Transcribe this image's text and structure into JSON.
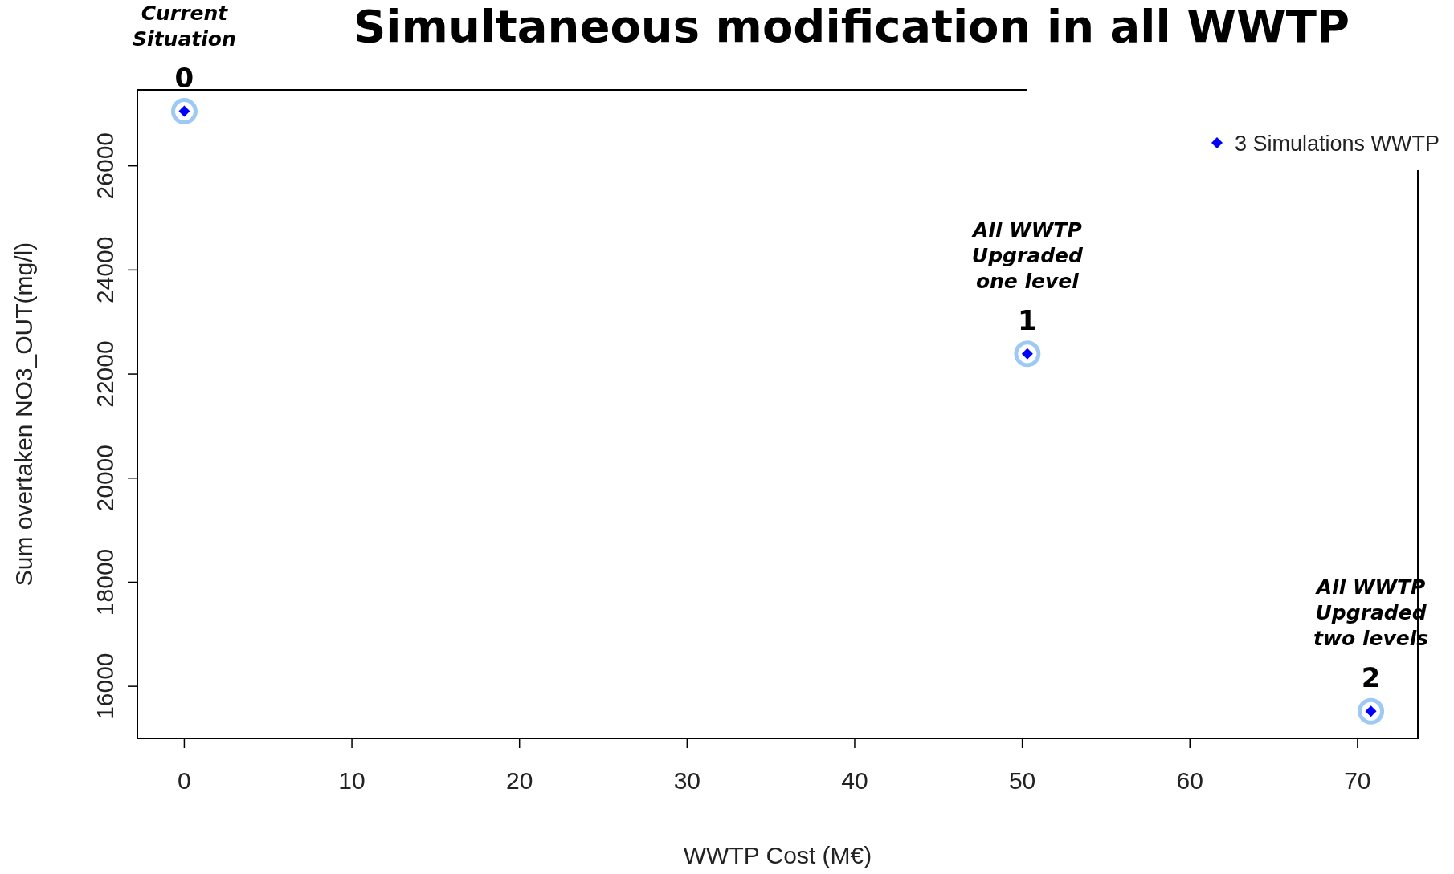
{
  "chart_data": {
    "type": "scatter",
    "title": "Simultaneous modification in all WWTP",
    "xlabel": "WWTP Cost (M€)",
    "ylabel": "Sum overtaken NO3_OUT(mg/l)",
    "x": [
      0,
      50.3,
      70.8
    ],
    "series": [
      {
        "type": "scatter",
        "marker": "circle",
        "color": "#9ec9f5",
        "values": [
          27050,
          22390,
          15520
        ]
      },
      {
        "name": "3 Simulations WWTP",
        "type": "scatter",
        "marker": "diamond",
        "color": "#0000ff",
        "values": [
          27050,
          22390,
          15520
        ]
      }
    ],
    "xlim": [
      -2.8,
      73.6
    ],
    "xticks": [
      0,
      10,
      20,
      30,
      40,
      50,
      60,
      70
    ],
    "ylim": [
      15000,
      27460
    ],
    "yticks": [
      16000,
      18000,
      20000,
      22000,
      24000,
      26000
    ],
    "legend": "top right",
    "grid": false,
    "annotations": [
      "Current\nSituation",
      {
        "text": "0",
        "x": 0,
        "y": 27050
      },
      "All WWTP\nUpgraded\none level",
      {
        "text": "1",
        "x": 50.3,
        "y": 22390
      },
      "All WWTP\nUpgraded\ntwo levels",
      {
        "text": "2",
        "x": 70.8,
        "y": 15520
      }
    ]
  }
}
